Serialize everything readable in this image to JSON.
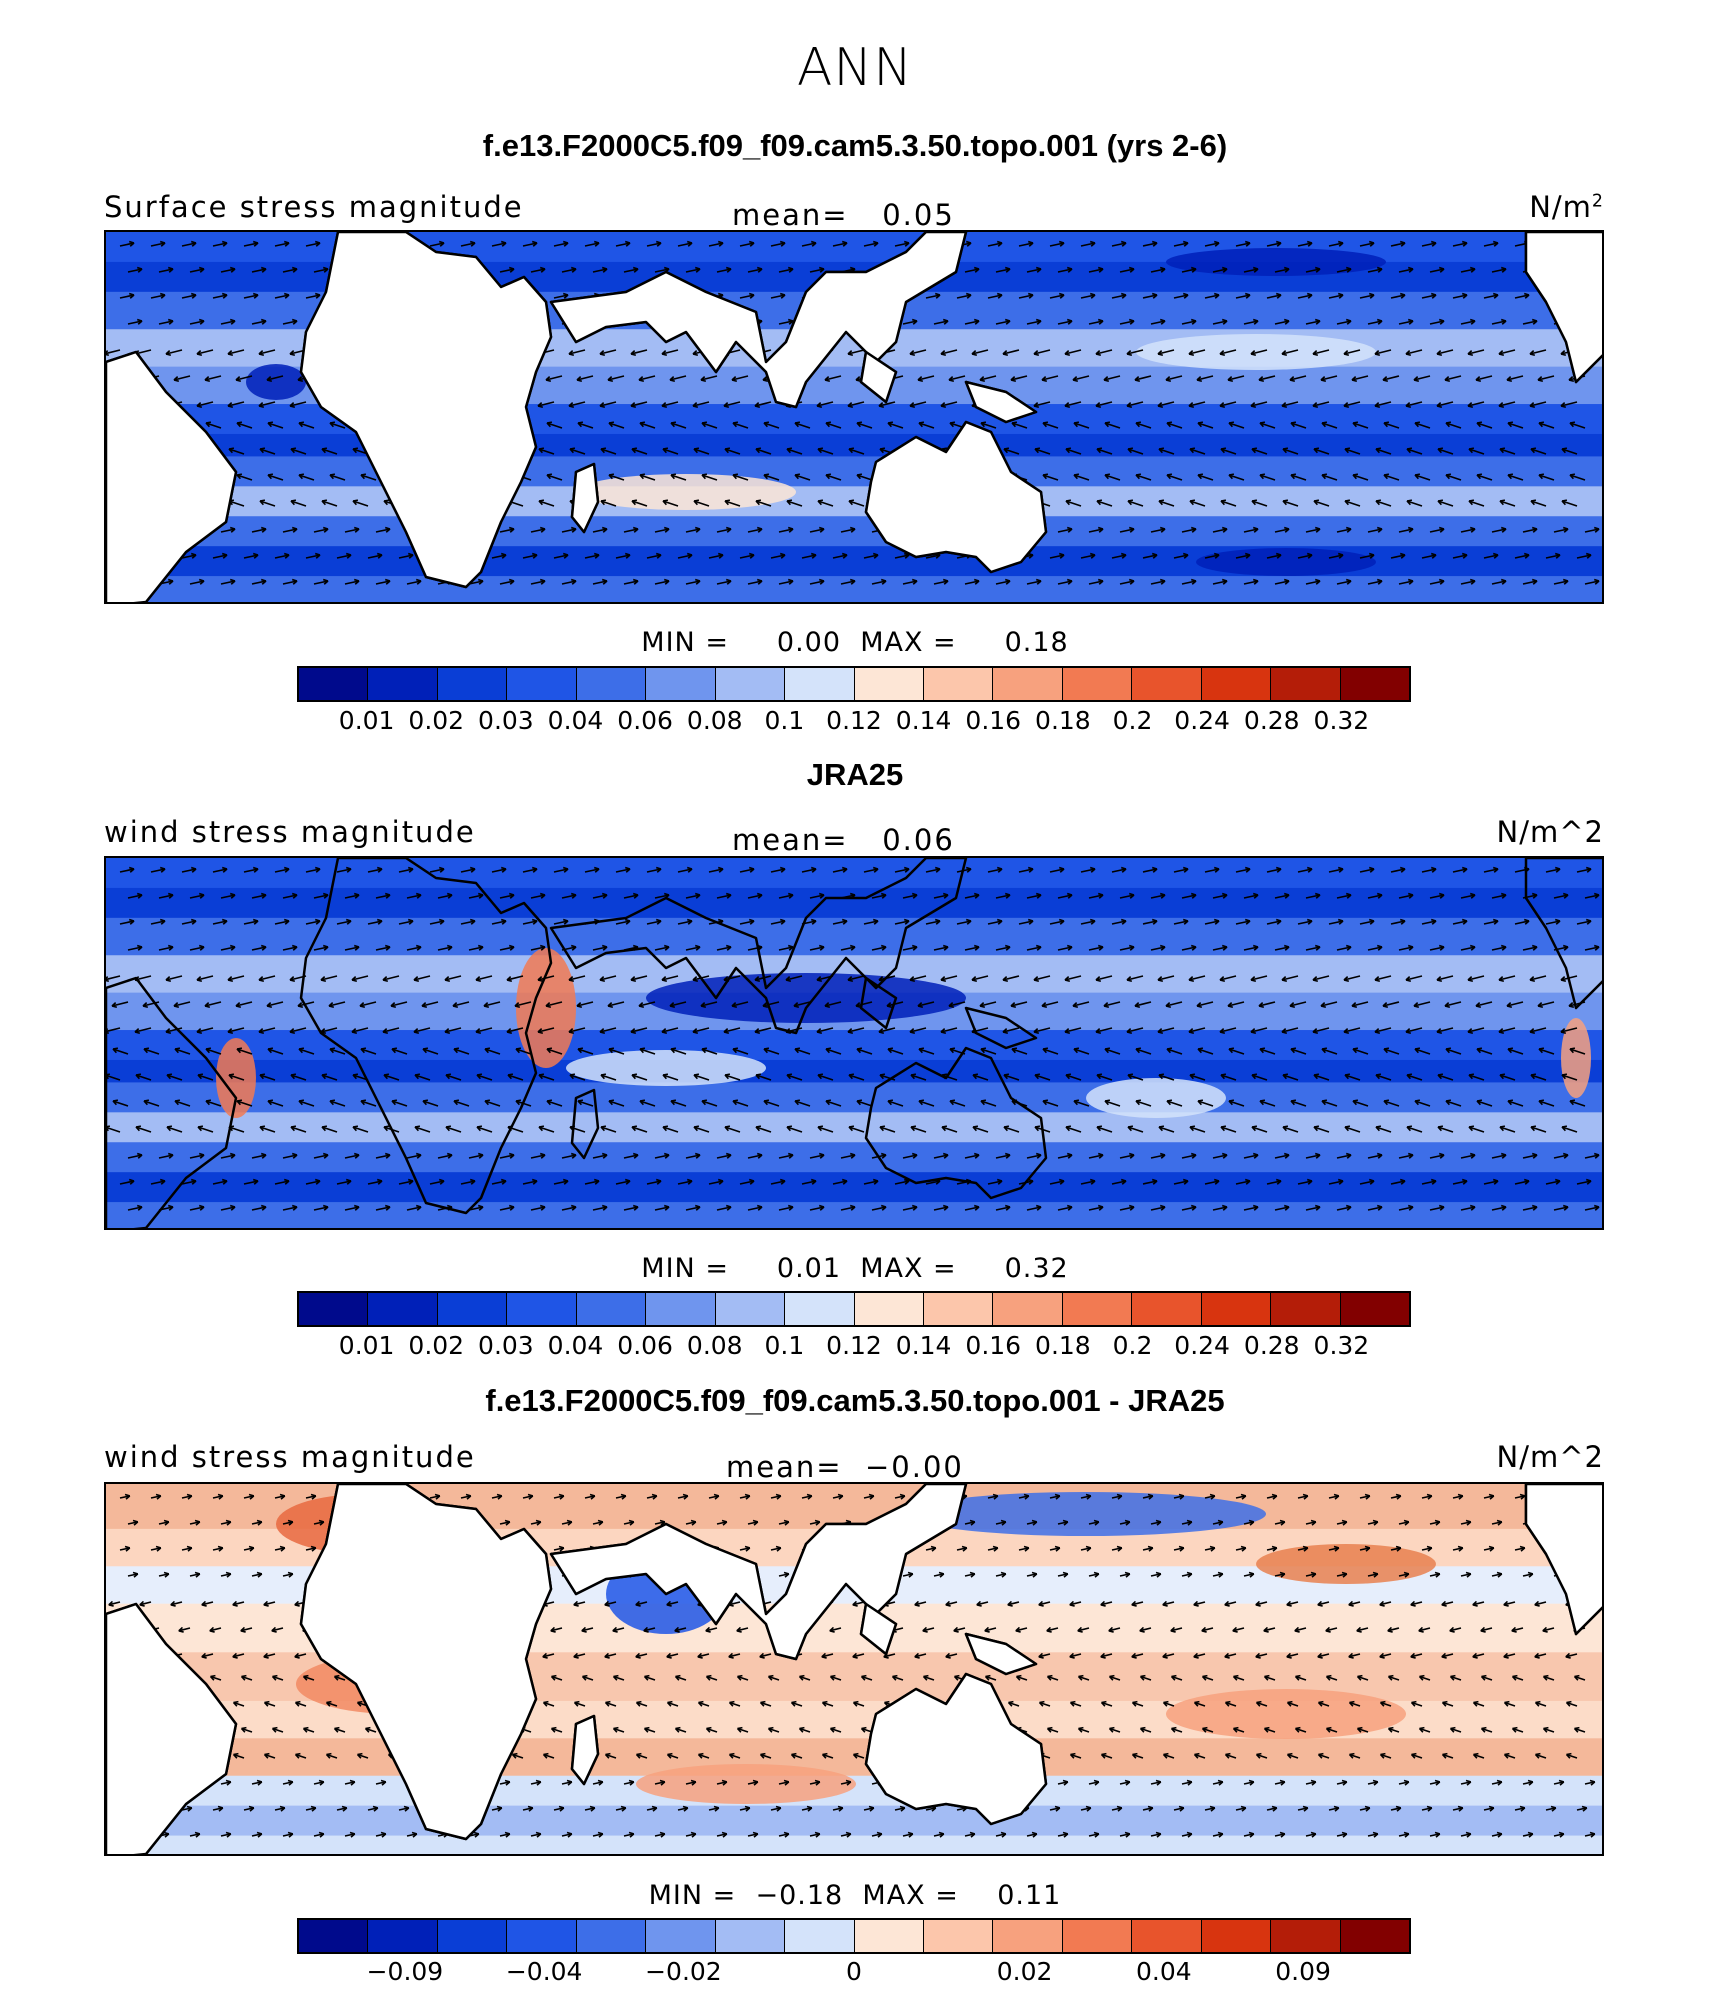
{
  "figure": {
    "title": "ANN"
  },
  "panels": [
    {
      "title": "f.e13.F2000C5.f09_f09.cam5.3.50.topo.001 (yrs 2-6)",
      "left_label": "Surface stress magnitude",
      "mean_label": "mean=",
      "mean_value": "0.05",
      "units_base": "N/m",
      "units_sup": "2",
      "min_label": "MIN =",
      "min_value": "0.00",
      "max_label": "MAX =",
      "max_value": "0.18",
      "palette": "abs"
    },
    {
      "title": "JRA25",
      "left_label": "wind stress magnitude",
      "mean_label": "mean=",
      "mean_value": "0.06",
      "units_base": "N/m^2",
      "units_sup": "",
      "min_label": "MIN =",
      "min_value": "0.01",
      "max_label": "MAX =",
      "max_value": "0.32",
      "palette": "abs"
    },
    {
      "title": "f.e13.F2000C5.f09_f09.cam5.3.50.topo.001 - JRA25",
      "left_label": "wind stress magnitude",
      "mean_label": "mean=",
      "mean_value": "−0.00",
      "units_base": "N/m^2",
      "units_sup": "",
      "min_label": "MIN =",
      "min_value": "−0.18",
      "max_label": "MAX =",
      "max_value": "0.11",
      "palette": "diff"
    }
  ],
  "colorbars": {
    "abs_colors": [
      "#000a8c",
      "#0020b8",
      "#0a3ed6",
      "#1f55e6",
      "#3d6ee8",
      "#6f95ee",
      "#a3bcf4",
      "#d4e3fa",
      "#fde6d6",
      "#fcc6ab",
      "#f7a17e",
      "#f27a52",
      "#e8542c",
      "#d8340f",
      "#b41d08",
      "#820000"
    ],
    "abs_ticks": [
      "0.01",
      "0.02",
      "0.03",
      "0.04",
      "0.06",
      "0.08",
      "0.1",
      "0.12",
      "0.14",
      "0.16",
      "0.18",
      "0.2",
      "0.24",
      "0.28",
      "0.32"
    ],
    "diff_colors": [
      "#000a8c",
      "#0020b8",
      "#0a3ed6",
      "#1f55e6",
      "#3d6ee8",
      "#6f95ee",
      "#a3bcf4",
      "#d4e3fa",
      "#fde6d6",
      "#fcc6ab",
      "#f7a17e",
      "#f27a52",
      "#e8542c",
      "#d8340f",
      "#b41d08",
      "#820000"
    ],
    "diff_ticks": [
      "−0.09",
      "−0.04",
      "−0.02",
      "0",
      "0.02",
      "0.04",
      "0.09"
    ]
  },
  "map_colors": {
    "land": "#ffffff",
    "coast": "#000000",
    "vector": "#000000"
  }
}
